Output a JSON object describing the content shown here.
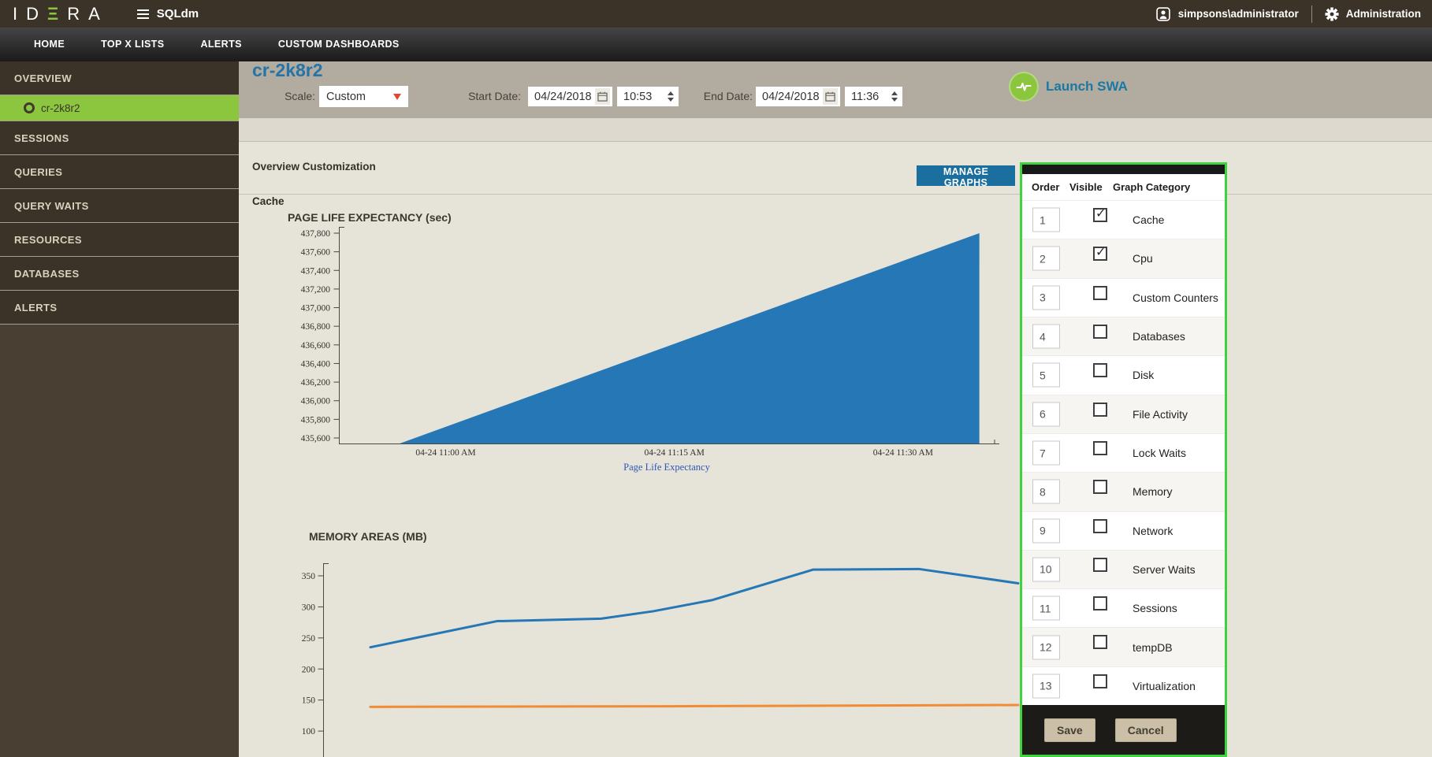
{
  "topbar": {
    "logo_text": "IDERA",
    "app_name": "SQLdm",
    "user": "simpsons\\administrator",
    "admin_label": "Administration"
  },
  "nav": {
    "items": [
      "HOME",
      "TOP X LISTS",
      "ALERTS",
      "CUSTOM DASHBOARDS"
    ]
  },
  "sidebar": {
    "items": [
      {
        "label": "OVERVIEW",
        "children": [
          {
            "label": "cr-2k8r2",
            "selected": true
          }
        ]
      },
      {
        "label": "SESSIONS"
      },
      {
        "label": "QUERIES"
      },
      {
        "label": "QUERY WAITS"
      },
      {
        "label": "RESOURCES"
      },
      {
        "label": "DATABASES"
      },
      {
        "label": "ALERTS"
      }
    ]
  },
  "header": {
    "server_name": "cr-2k8r2",
    "scale_label": "Scale:",
    "scale_value": "Custom",
    "start_date_label": "Start Date:",
    "start_date": "04/24/2018",
    "start_time": "10:53",
    "end_date_label": "End Date:",
    "end_date": "04/24/2018",
    "end_time": "11:36",
    "launch_swa": "Launch SWA"
  },
  "toolbar": {
    "title": "Overview Customization",
    "manage_graphs_label": "MANAGE GRAPHS"
  },
  "section": {
    "cache_label": "Cache"
  },
  "manage_graphs": {
    "columns": [
      "Order",
      "Visible",
      "Graph Category"
    ],
    "rows": [
      {
        "order": "1",
        "visible": true,
        "category": "Cache"
      },
      {
        "order": "2",
        "visible": true,
        "category": "Cpu"
      },
      {
        "order": "3",
        "visible": false,
        "category": "Custom Counters"
      },
      {
        "order": "4",
        "visible": false,
        "category": "Databases"
      },
      {
        "order": "5",
        "visible": false,
        "category": "Disk"
      },
      {
        "order": "6",
        "visible": false,
        "category": "File Activity"
      },
      {
        "order": "7",
        "visible": false,
        "category": "Lock Waits"
      },
      {
        "order": "8",
        "visible": false,
        "category": "Memory"
      },
      {
        "order": "9",
        "visible": false,
        "category": "Network"
      },
      {
        "order": "10",
        "visible": false,
        "category": "Server Waits"
      },
      {
        "order": "11",
        "visible": false,
        "category": "Sessions"
      },
      {
        "order": "12",
        "visible": false,
        "category": "tempDB"
      },
      {
        "order": "13",
        "visible": false,
        "category": "Virtualization"
      }
    ],
    "save_label": "Save",
    "cancel_label": "Cancel"
  },
  "colors": {
    "brand_green": "#8cc63f",
    "panel_border_green": "#3ed23e",
    "button_blue": "#1b6f9e",
    "title_blue": "#2673a8",
    "chart_blue": "#2577b5",
    "chart_orange": "#f18b34"
  },
  "chart_data": [
    {
      "type": "area",
      "title": "PAGE LIFE EXPECTANCY (sec)",
      "ylim": [
        435600,
        437800
      ],
      "y_tick_step": 200,
      "x_range": [
        "10:53",
        "11:36"
      ],
      "x_ticks": [
        {
          "time": "11:00",
          "label": "04-24 11:00 AM"
        },
        {
          "time": "11:15",
          "label": "04-24 11:15 AM"
        },
        {
          "time": "11:30",
          "label": "04-24 11:30 AM"
        }
      ],
      "series": [
        {
          "name": "Page Life Expectancy",
          "color": "#2577b5",
          "points": [
            {
              "time": "10:57",
              "value": 435520
            },
            {
              "time": "11:35",
              "value": 437800
            }
          ]
        }
      ],
      "legend": [
        "Page Life Expectancy"
      ],
      "legend_position": "bottom",
      "grid": false
    },
    {
      "type": "line",
      "title": "MEMORY AREAS (MB)",
      "y_ticks": [
        350,
        300,
        250,
        200,
        150,
        100
      ],
      "x_axis_visible": false,
      "series": [
        {
          "name": "memory-series-1",
          "color": "#2577b5",
          "points_frac": [
            [
              0.068,
              235
            ],
            [
              0.25,
              277
            ],
            [
              0.4,
              281
            ],
            [
              0.475,
              293
            ],
            [
              0.56,
              311
            ],
            [
              0.705,
              360
            ],
            [
              0.857,
              361
            ],
            [
              1.0,
              338
            ]
          ]
        },
        {
          "name": "memory-series-2",
          "color": "#f18b34",
          "points_frac": [
            [
              0.068,
              139
            ],
            [
              0.5,
              140
            ],
            [
              1.0,
              142
            ]
          ]
        }
      ],
      "grid": false
    }
  ]
}
